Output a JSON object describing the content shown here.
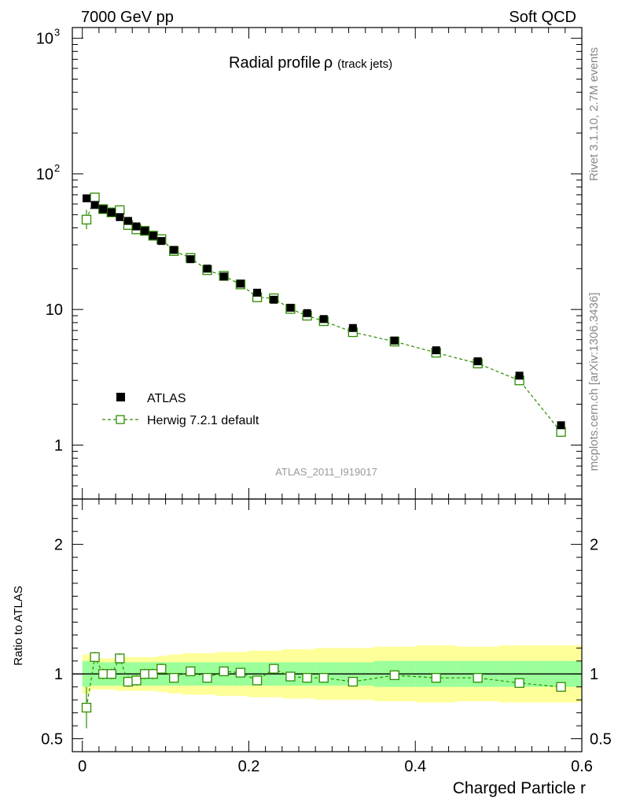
{
  "header": {
    "left_label": "7000 GeV pp",
    "right_label": "Soft QCD",
    "side_text_top": "Rivet 3.1.10,  2.7M events",
    "side_text_bottom": "mcplots.cern.ch [arXiv:1306.3436]",
    "watermark": "ATLAS_2011_I919017"
  },
  "colors": {
    "data": "#000000",
    "mc": "#2e8b00",
    "band_inner": "#9aff9a",
    "band_outer": "#ffff99"
  },
  "chart_data": [
    {
      "type": "scatter",
      "title": "Radial profile",
      "title_symbol": "ρ",
      "title_note": "(track jets)",
      "xlabel": "Charged Particle r",
      "ylabel": "",
      "yscale": "log",
      "xlim": [
        -0.012,
        0.6
      ],
      "ylim": [
        0.4,
        1200
      ],
      "x_ticks": [
        "0",
        "0.2",
        "0.4",
        "0.6"
      ],
      "y_ticks": [
        {
          "value": 1,
          "label": "1"
        },
        {
          "value": 10,
          "label": "10"
        },
        {
          "value": 100,
          "label": "10",
          "exp": "2"
        },
        {
          "value": 1000,
          "label": "10",
          "exp": "3"
        }
      ],
      "legend": {
        "position": "bottom-left",
        "entries": [
          "ATLAS",
          "Herwig 7.2.1 default"
        ]
      },
      "x": [
        0.005,
        0.015,
        0.025,
        0.035,
        0.045,
        0.055,
        0.065,
        0.075,
        0.085,
        0.095,
        0.11,
        0.13,
        0.15,
        0.17,
        0.19,
        0.21,
        0.23,
        0.25,
        0.27,
        0.29,
        0.325,
        0.375,
        0.425,
        0.475,
        0.525,
        0.575
      ],
      "series": [
        {
          "name": "ATLAS",
          "values": [
            66,
            59,
            55,
            52,
            48,
            45,
            41,
            38,
            35,
            32,
            27.5,
            23.5,
            20,
            17.5,
            15.5,
            13.3,
            11.8,
            10.3,
            9.4,
            8.5,
            7.3,
            5.9,
            5.0,
            4.15,
            3.25,
            1.4
          ]
        },
        {
          "name": "Herwig 7.2.1 default",
          "values": [
            46,
            67,
            55,
            52,
            54,
            42,
            39,
            38,
            35,
            33,
            27,
            24,
            19.5,
            17.7,
            15.3,
            12.3,
            12.1,
            10.1,
            9.0,
            8.2,
            6.8,
            5.8,
            4.8,
            4.0,
            3.0,
            1.25
          ]
        }
      ]
    },
    {
      "type": "line",
      "title": "",
      "xlabel": "Charged Particle r",
      "ylabel": "Ratio to ATLAS",
      "xlim": [
        -0.012,
        0.6
      ],
      "ylim": [
        0.4,
        2.35
      ],
      "y_ticks": [
        {
          "value": 0.5,
          "label": "0.5"
        },
        {
          "value": 1,
          "label": "1"
        },
        {
          "value": 2,
          "label": "2"
        }
      ],
      "reference_line": 1,
      "x": [
        0.005,
        0.015,
        0.025,
        0.035,
        0.045,
        0.055,
        0.065,
        0.075,
        0.085,
        0.095,
        0.11,
        0.13,
        0.15,
        0.17,
        0.19,
        0.21,
        0.23,
        0.25,
        0.27,
        0.29,
        0.325,
        0.375,
        0.425,
        0.475,
        0.525,
        0.575
      ],
      "series": [
        {
          "name": "Herwig 7.2.1 default",
          "values": [
            0.74,
            1.13,
            1.0,
            1.0,
            1.12,
            0.94,
            0.95,
            1.0,
            1.0,
            1.04,
            0.97,
            1.02,
            0.97,
            1.02,
            1.01,
            0.95,
            1.04,
            0.98,
            0.97,
            0.97,
            0.94,
            0.99,
            0.97,
            0.97,
            0.93,
            0.9
          ]
        }
      ],
      "band_inner_halfwidth": [
        0.1,
        0.09,
        0.09,
        0.09,
        0.09,
        0.09,
        0.09,
        0.09,
        0.09,
        0.09,
        0.09,
        0.09,
        0.09,
        0.09,
        0.09,
        0.09,
        0.09,
        0.09,
        0.09,
        0.09,
        0.09,
        0.1,
        0.1,
        0.1,
        0.1,
        0.1
      ],
      "band_outer_halfwidth": [
        0.15,
        0.12,
        0.12,
        0.12,
        0.13,
        0.13,
        0.13,
        0.13,
        0.13,
        0.14,
        0.15,
        0.16,
        0.16,
        0.17,
        0.17,
        0.18,
        0.18,
        0.19,
        0.19,
        0.2,
        0.2,
        0.21,
        0.22,
        0.21,
        0.22,
        0.22
      ]
    }
  ]
}
